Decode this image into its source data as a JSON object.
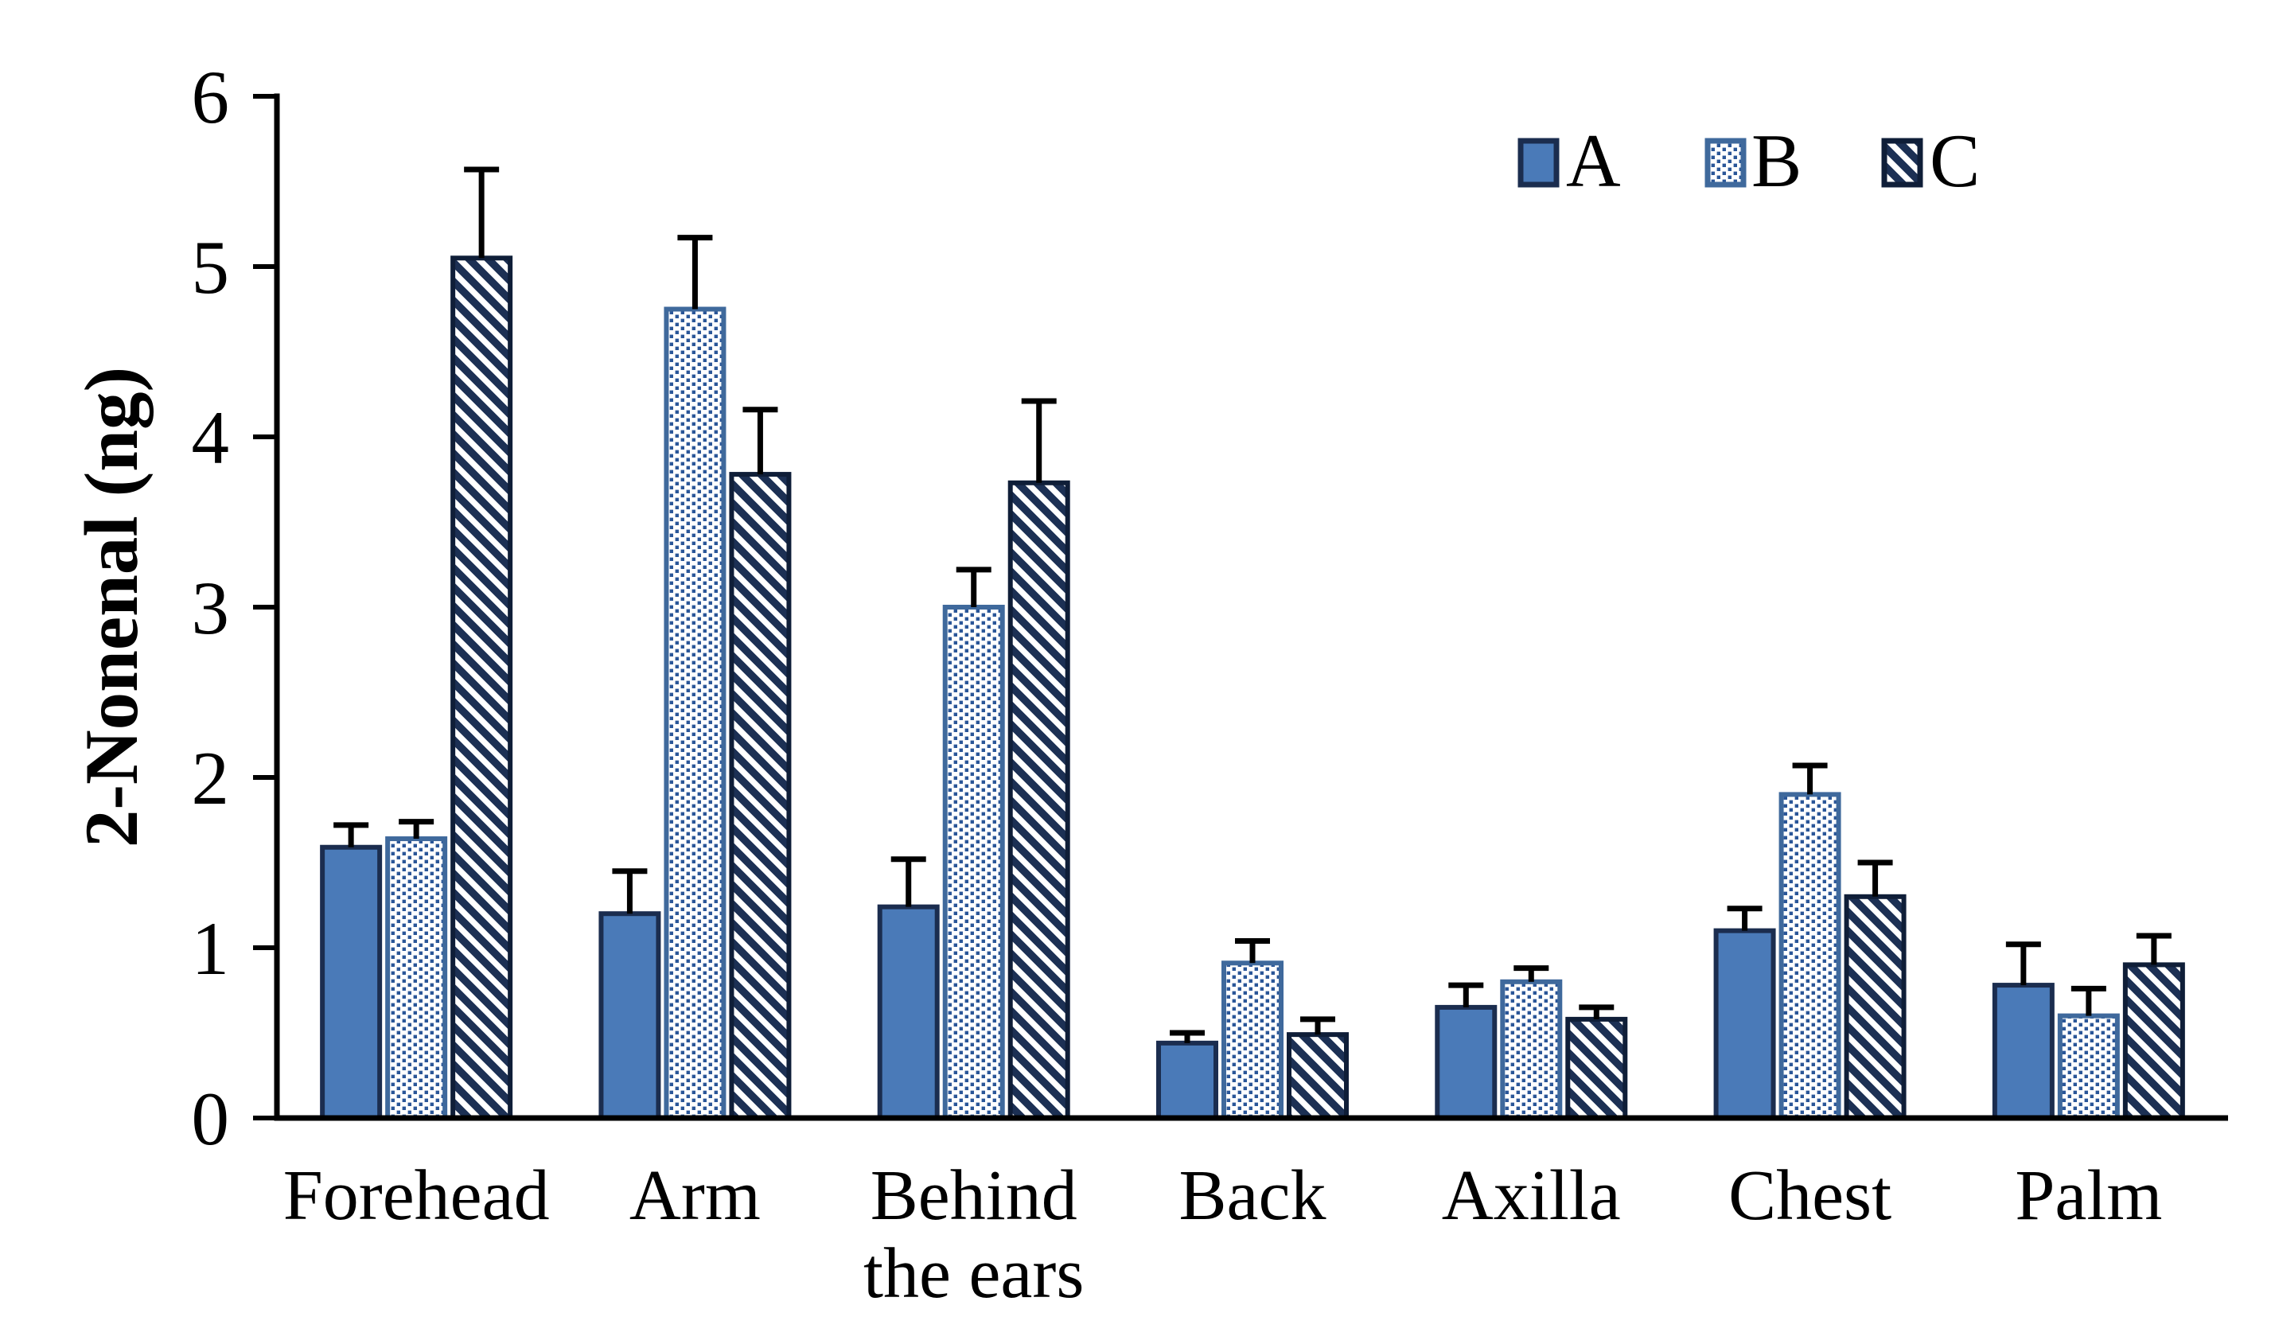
{
  "figure": {
    "background": "#ffffff",
    "kind": "grouped bar chart with +SD error bars"
  },
  "chart_data": {
    "type": "bar",
    "title": "",
    "xlabel": "",
    "ylabel": "2-Nonenal (ng)",
    "ylim": [
      0,
      6
    ],
    "yticks": [
      0,
      1,
      2,
      3,
      4,
      5,
      6
    ],
    "grid": false,
    "legend_position": "top-right",
    "error_bars": "upper only, black caps",
    "categories": [
      "Forehead",
      "Arm",
      "Behind the ears",
      "Back",
      "Axilla",
      "Chest",
      "Palm"
    ],
    "category_lines": [
      [
        "Forehead"
      ],
      [
        "Arm"
      ],
      [
        "Behind",
        "the ears"
      ],
      [
        "Back"
      ],
      [
        "Axilla"
      ],
      [
        "Chest"
      ],
      [
        "Palm"
      ]
    ],
    "series": [
      {
        "name": "A",
        "pattern": "solid",
        "values": [
          1.59,
          1.2,
          1.24,
          0.44,
          0.65,
          1.1,
          0.78
        ],
        "errors": [
          0.13,
          0.25,
          0.28,
          0.06,
          0.13,
          0.13,
          0.24
        ]
      },
      {
        "name": "B",
        "pattern": "dots",
        "values": [
          1.64,
          4.75,
          3.0,
          0.91,
          0.8,
          1.9,
          0.6
        ],
        "errors": [
          0.1,
          0.42,
          0.22,
          0.13,
          0.08,
          0.17,
          0.16
        ]
      },
      {
        "name": "C",
        "pattern": "diagonal-hatch",
        "values": [
          5.05,
          3.78,
          3.73,
          0.49,
          0.58,
          1.3,
          0.9
        ],
        "errors": [
          0.52,
          0.38,
          0.48,
          0.09,
          0.07,
          0.2,
          0.17
        ]
      }
    ],
    "colors": {
      "bar_a_fill": "#4a7ab8",
      "bar_a_border": "#1b2d4f",
      "bar_b_border": "#3f699c",
      "bar_c_border": "#0f1e38",
      "dot_color": "#2a5698",
      "dot_bg": "#ffffff",
      "hatch_color": "#1c3054",
      "hatch_bg": "#ffffff",
      "axis": "#000000",
      "error_bar": "#000000",
      "text": "#000000"
    }
  }
}
